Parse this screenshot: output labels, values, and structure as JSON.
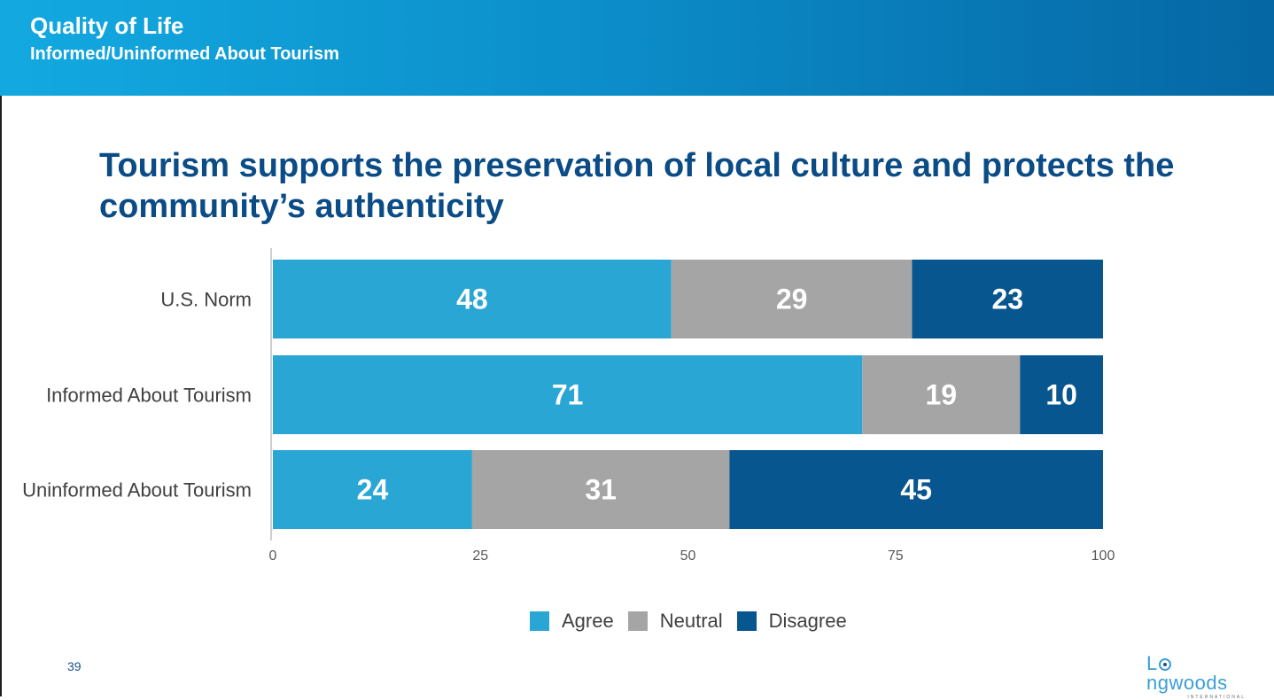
{
  "header": {
    "title": "Quality of Life",
    "subtitle": "Informed/Uninformed About Tourism"
  },
  "page_number": "39",
  "logo": {
    "word_before": "L",
    "word_after": "ngwoods",
    "tagline": "INTERNATIONAL"
  },
  "colors": {
    "header_start": "#13a9e0",
    "header_end": "#0567a4",
    "title": "#0b4c86",
    "agree": "#2aa6d5",
    "neutral": "#a5a5a5",
    "disagree": "#08568f"
  },
  "chart_data": {
    "type": "bar",
    "orientation": "horizontal",
    "stacked": true,
    "title": "Tourism supports the preservation of local culture and protects the community’s authenticity",
    "categories": [
      "U.S. Norm",
      "Informed About Tourism",
      "Uninformed About Tourism"
    ],
    "series": [
      {
        "name": "Agree",
        "values": [
          48,
          71,
          24
        ],
        "color": "#2aa6d5"
      },
      {
        "name": "Neutral",
        "values": [
          29,
          19,
          31
        ],
        "color": "#a5a5a5"
      },
      {
        "name": "Disagree",
        "values": [
          23,
          10,
          45
        ],
        "color": "#08568f"
      }
    ],
    "xlim": [
      0,
      100
    ],
    "xticks": [
      0,
      25,
      50,
      75,
      100
    ],
    "xlabel": "",
    "ylabel": "",
    "grid": false,
    "legend": "bottom"
  }
}
